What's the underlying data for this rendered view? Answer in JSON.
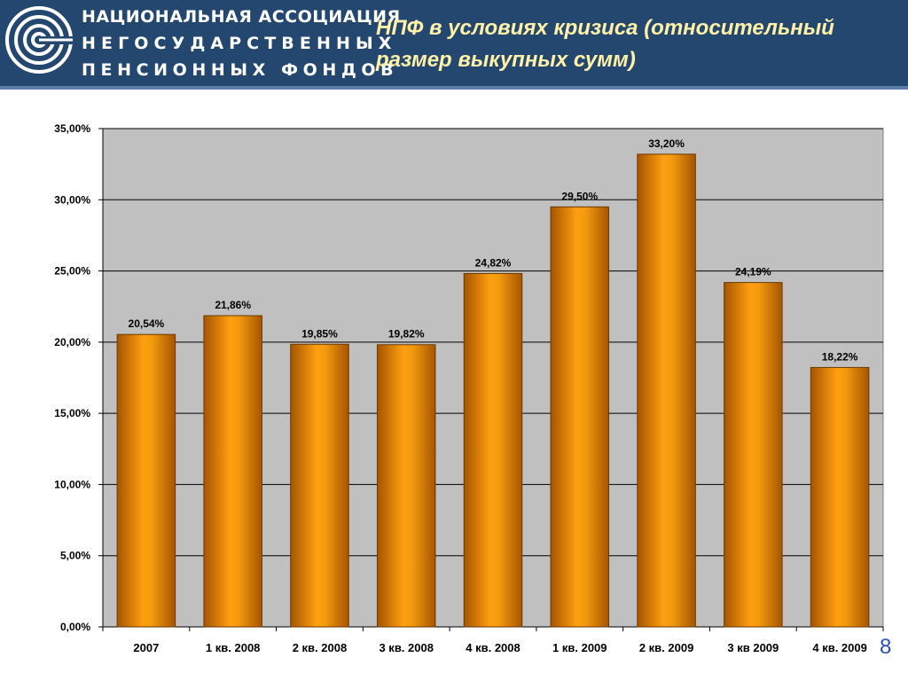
{
  "header": {
    "org_line1": "НАЦИОНАЛЬНАЯ АССОЦИАЦИЯ",
    "org_line2": "НЕГОСУДАРСТВЕННЫХ",
    "org_line3": "ПЕНСИОННЫХ ФОНДОВ",
    "title_line1": "НПФ в условиях кризиса (относительный",
    "title_line2": "размер выкупных сумм)",
    "background_color": "#24476f",
    "title_color": "#fff2a8"
  },
  "page_number": "8",
  "chart_data": {
    "type": "bar",
    "categories": [
      "2007",
      "1 кв. 2008",
      "2 кв. 2008",
      "3 кв. 2008",
      "4 кв. 2008",
      "1 кв. 2009",
      "2 кв. 2009",
      "3 кв 2009",
      "4 кв. 2009"
    ],
    "values": [
      20.54,
      21.86,
      19.85,
      19.82,
      24.82,
      29.5,
      33.2,
      24.19,
      18.22
    ],
    "value_labels": [
      "20,54%",
      "21,86%",
      "19,85%",
      "19,82%",
      "24,82%",
      "29,50%",
      "33,20%",
      "24,19%",
      "18,22%"
    ],
    "y_ticks": [
      0,
      5,
      10,
      15,
      20,
      25,
      30,
      35
    ],
    "y_tick_labels": [
      "0,00%",
      "5,00%",
      "10,00%",
      "15,00%",
      "20,00%",
      "25,00%",
      "30,00%",
      "35,00%"
    ],
    "ylim": [
      0,
      35
    ],
    "grid": true,
    "bar_color": "#f39a0e",
    "plot_background": "#c0c0c0"
  }
}
